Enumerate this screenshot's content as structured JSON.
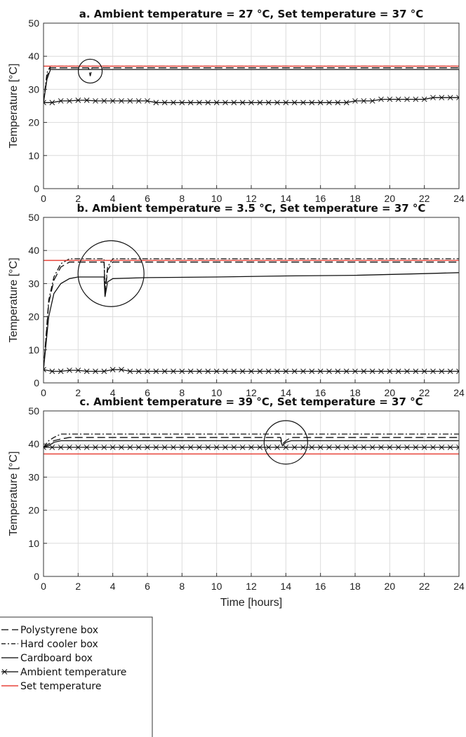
{
  "figure": {
    "xlabel_bottom": "Time [hours]",
    "legend": [
      {
        "label": "Polystyrene box",
        "style": "dashed",
        "color": "#000000"
      },
      {
        "label": "Hard cooler box",
        "style": "dashdot",
        "color": "#000000"
      },
      {
        "label": "Cardboard box",
        "style": "solid",
        "color": "#000000"
      },
      {
        "label": "Ambient temperature",
        "style": "x-marker",
        "color": "#000000"
      },
      {
        "label": "Set temperature",
        "style": "solid",
        "color": "#e8443a"
      }
    ],
    "legend_position": "bottom-left"
  },
  "chart_data": [
    {
      "type": "line",
      "title": "a. Ambient temperature = 27 °C, Set temperature = 37 °C",
      "xlabel": "",
      "ylabel": "Temperature [°C]",
      "xlim": [
        0,
        24
      ],
      "ylim": [
        0,
        50
      ],
      "xticks": [
        0,
        2,
        4,
        6,
        8,
        10,
        12,
        14,
        16,
        18,
        20,
        22,
        24
      ],
      "yticks": [
        0,
        10,
        20,
        30,
        40,
        50
      ],
      "grid": true,
      "series": [
        {
          "name": "Polystyrene box",
          "style": "dashed",
          "x": [
            0,
            0.2,
            0.4,
            2.6,
            2.7,
            2.8,
            24
          ],
          "y": [
            26,
            34,
            36.5,
            36.5,
            34,
            36.5,
            36.5
          ]
        },
        {
          "name": "Hard cooler box",
          "style": "dashdot",
          "x": [
            0,
            0.2,
            0.4,
            24
          ],
          "y": [
            26,
            35,
            37,
            37
          ]
        },
        {
          "name": "Cardboard box",
          "style": "solid",
          "x": [
            0,
            0.2,
            0.4,
            24
          ],
          "y": [
            26,
            33,
            36,
            36
          ]
        },
        {
          "name": "Ambient temperature",
          "style": "x-marker",
          "x": [
            0,
            0.5,
            1,
            1.5,
            2,
            2.5,
            3,
            3.5,
            4,
            4.5,
            5,
            5.5,
            6,
            6.5,
            7,
            7.5,
            8,
            8.5,
            9,
            9.5,
            10,
            10.5,
            11,
            11.5,
            12,
            12.5,
            13,
            13.5,
            14,
            14.5,
            15,
            15.5,
            16,
            16.5,
            17,
            17.5,
            18,
            18.5,
            19,
            19.5,
            20,
            20.5,
            21,
            21.5,
            22,
            22.5,
            23,
            23.5,
            24
          ],
          "y": [
            26,
            26,
            26.5,
            26.5,
            26.7,
            26.7,
            26.5,
            26.5,
            26.5,
            26.5,
            26.5,
            26.5,
            26.5,
            26,
            26,
            26,
            26,
            26,
            26,
            26,
            26,
            26,
            26,
            26,
            26,
            26,
            26,
            26,
            26,
            26,
            26,
            26,
            26,
            26,
            26,
            26,
            26.5,
            26.5,
            26.5,
            27,
            27,
            27,
            27,
            27,
            27,
            27.5,
            27.5,
            27.5,
            27.5
          ]
        },
        {
          "name": "Set temperature",
          "style": "solid-red",
          "x": [
            0,
            24
          ],
          "y": [
            37,
            37
          ]
        }
      ],
      "circle_annotation": {
        "x": 2.7,
        "y": 35.5
      }
    },
    {
      "type": "line",
      "title": "b. Ambient temperature = 3.5 °C, Set temperature = 37 °C",
      "xlabel": "",
      "ylabel": "Temperature [°C]",
      "xlim": [
        0,
        24
      ],
      "ylim": [
        0,
        50
      ],
      "xticks": [
        0,
        2,
        4,
        6,
        8,
        10,
        12,
        14,
        16,
        18,
        20,
        22,
        24
      ],
      "yticks": [
        0,
        10,
        20,
        30,
        40,
        50
      ],
      "grid": true,
      "series": [
        {
          "name": "Polystyrene box",
          "style": "dashed",
          "x": [
            0,
            0.3,
            0.6,
            1,
            1.5,
            3.5,
            3.55,
            3.7,
            4,
            24
          ],
          "y": [
            4,
            24,
            31,
            35,
            36.5,
            36.5,
            27,
            34,
            36.5,
            36.5
          ]
        },
        {
          "name": "Hard cooler box",
          "style": "dashdot",
          "x": [
            0,
            0.3,
            0.6,
            1,
            1.5,
            3.5,
            3.55,
            3.7,
            4,
            24
          ],
          "y": [
            4,
            25,
            32,
            36,
            37.5,
            37.5,
            28,
            35,
            37.5,
            37.5
          ]
        },
        {
          "name": "Cardboard box",
          "style": "solid",
          "x": [
            0,
            0.3,
            0.6,
            1,
            1.5,
            2,
            3.5,
            3.55,
            3.7,
            4,
            6,
            10,
            14,
            18,
            22,
            24
          ],
          "y": [
            4,
            20,
            27,
            30,
            31.5,
            32,
            32,
            26,
            30.5,
            31.5,
            31.8,
            32,
            32.3,
            32.5,
            33,
            33.3
          ]
        },
        {
          "name": "Ambient temperature",
          "style": "x-marker",
          "x": [
            0,
            0.5,
            1,
            1.5,
            2,
            2.5,
            3,
            3.5,
            4,
            4.5,
            5,
            5.5,
            6,
            6.5,
            7,
            7.5,
            8,
            8.5,
            9,
            9.5,
            10,
            10.5,
            11,
            11.5,
            12,
            12.5,
            13,
            13.5,
            14,
            14.5,
            15,
            15.5,
            16,
            16.5,
            17,
            17.5,
            18,
            18.5,
            19,
            19.5,
            20,
            20.5,
            21,
            21.5,
            22,
            22.5,
            23,
            23.5,
            24
          ],
          "y": [
            4,
            3.5,
            3.5,
            3.8,
            3.8,
            3.5,
            3.5,
            3.5,
            4,
            4,
            3.5,
            3.5,
            3.5,
            3.5,
            3.5,
            3.5,
            3.5,
            3.5,
            3.5,
            3.5,
            3.5,
            3.5,
            3.5,
            3.5,
            3.5,
            3.5,
            3.5,
            3.5,
            3.5,
            3.5,
            3.5,
            3.5,
            3.5,
            3.5,
            3.5,
            3.5,
            3.5,
            3.5,
            3.5,
            3.5,
            3.5,
            3.5,
            3.5,
            3.5,
            3.5,
            3.5,
            3.5,
            3.5,
            3.5
          ]
        },
        {
          "name": "Set temperature",
          "style": "solid-red",
          "x": [
            0,
            24
          ],
          "y": [
            37,
            37
          ]
        }
      ],
      "circle_annotation": {
        "x": 3.9,
        "y": 33
      }
    },
    {
      "type": "line",
      "title": "c. Ambient temperature = 39 °C, Set temperature = 37 °C",
      "xlabel": "Time [hours]",
      "ylabel": "Temperature [°C]",
      "xlim": [
        0,
        24
      ],
      "ylim": [
        0,
        50
      ],
      "xticks": [
        0,
        2,
        4,
        6,
        8,
        10,
        12,
        14,
        16,
        18,
        20,
        22,
        24
      ],
      "yticks": [
        0,
        10,
        20,
        30,
        40,
        50
      ],
      "grid": true,
      "series": [
        {
          "name": "Polystyrene box",
          "style": "dashed",
          "x": [
            0,
            0.3,
            0.6,
            1,
            1.5,
            13.7,
            13.8,
            14,
            14.3,
            24
          ],
          "y": [
            39,
            40,
            41,
            41.5,
            42,
            42,
            40,
            41,
            42,
            42
          ]
        },
        {
          "name": "Hard cooler box",
          "style": "dashdot",
          "x": [
            0,
            0.3,
            0.6,
            1,
            24
          ],
          "y": [
            39,
            41,
            42,
            43,
            43
          ]
        },
        {
          "name": "Cardboard box",
          "style": "solid",
          "x": [
            0,
            0.3,
            0.6,
            1,
            13.7,
            13.8,
            14,
            14.3,
            24
          ],
          "y": [
            39,
            39.5,
            40.5,
            41,
            41,
            39.5,
            40.5,
            41,
            41
          ]
        },
        {
          "name": "Ambient temperature",
          "style": "x-marker",
          "x": [
            0,
            0.5,
            1,
            1.5,
            2,
            2.5,
            3,
            3.5,
            4,
            4.5,
            5,
            5.5,
            6,
            6.5,
            7,
            7.5,
            8,
            8.5,
            9,
            9.5,
            10,
            10.5,
            11,
            11.5,
            12,
            12.5,
            13,
            13.5,
            14,
            14.5,
            15,
            15.5,
            16,
            16.5,
            17,
            17.5,
            18,
            18.5,
            19,
            19.5,
            20,
            20.5,
            21,
            21.5,
            22,
            22.5,
            23,
            23.5,
            24
          ],
          "y": [
            39,
            39,
            39,
            39,
            39,
            39,
            39,
            39,
            39,
            39,
            39,
            39,
            39,
            39,
            39,
            39,
            39,
            39,
            39,
            39,
            39,
            39,
            39,
            39,
            39,
            39,
            39,
            39,
            39,
            39,
            39,
            39,
            39,
            39,
            39,
            39,
            39,
            39,
            39,
            39,
            39,
            39,
            39,
            39,
            39,
            39,
            39,
            39,
            39
          ]
        },
        {
          "name": "Set temperature",
          "style": "solid-red",
          "x": [
            0,
            24
          ],
          "y": [
            37,
            37
          ]
        }
      ],
      "circle_annotation": {
        "x": 14,
        "y": 40.5
      }
    }
  ]
}
